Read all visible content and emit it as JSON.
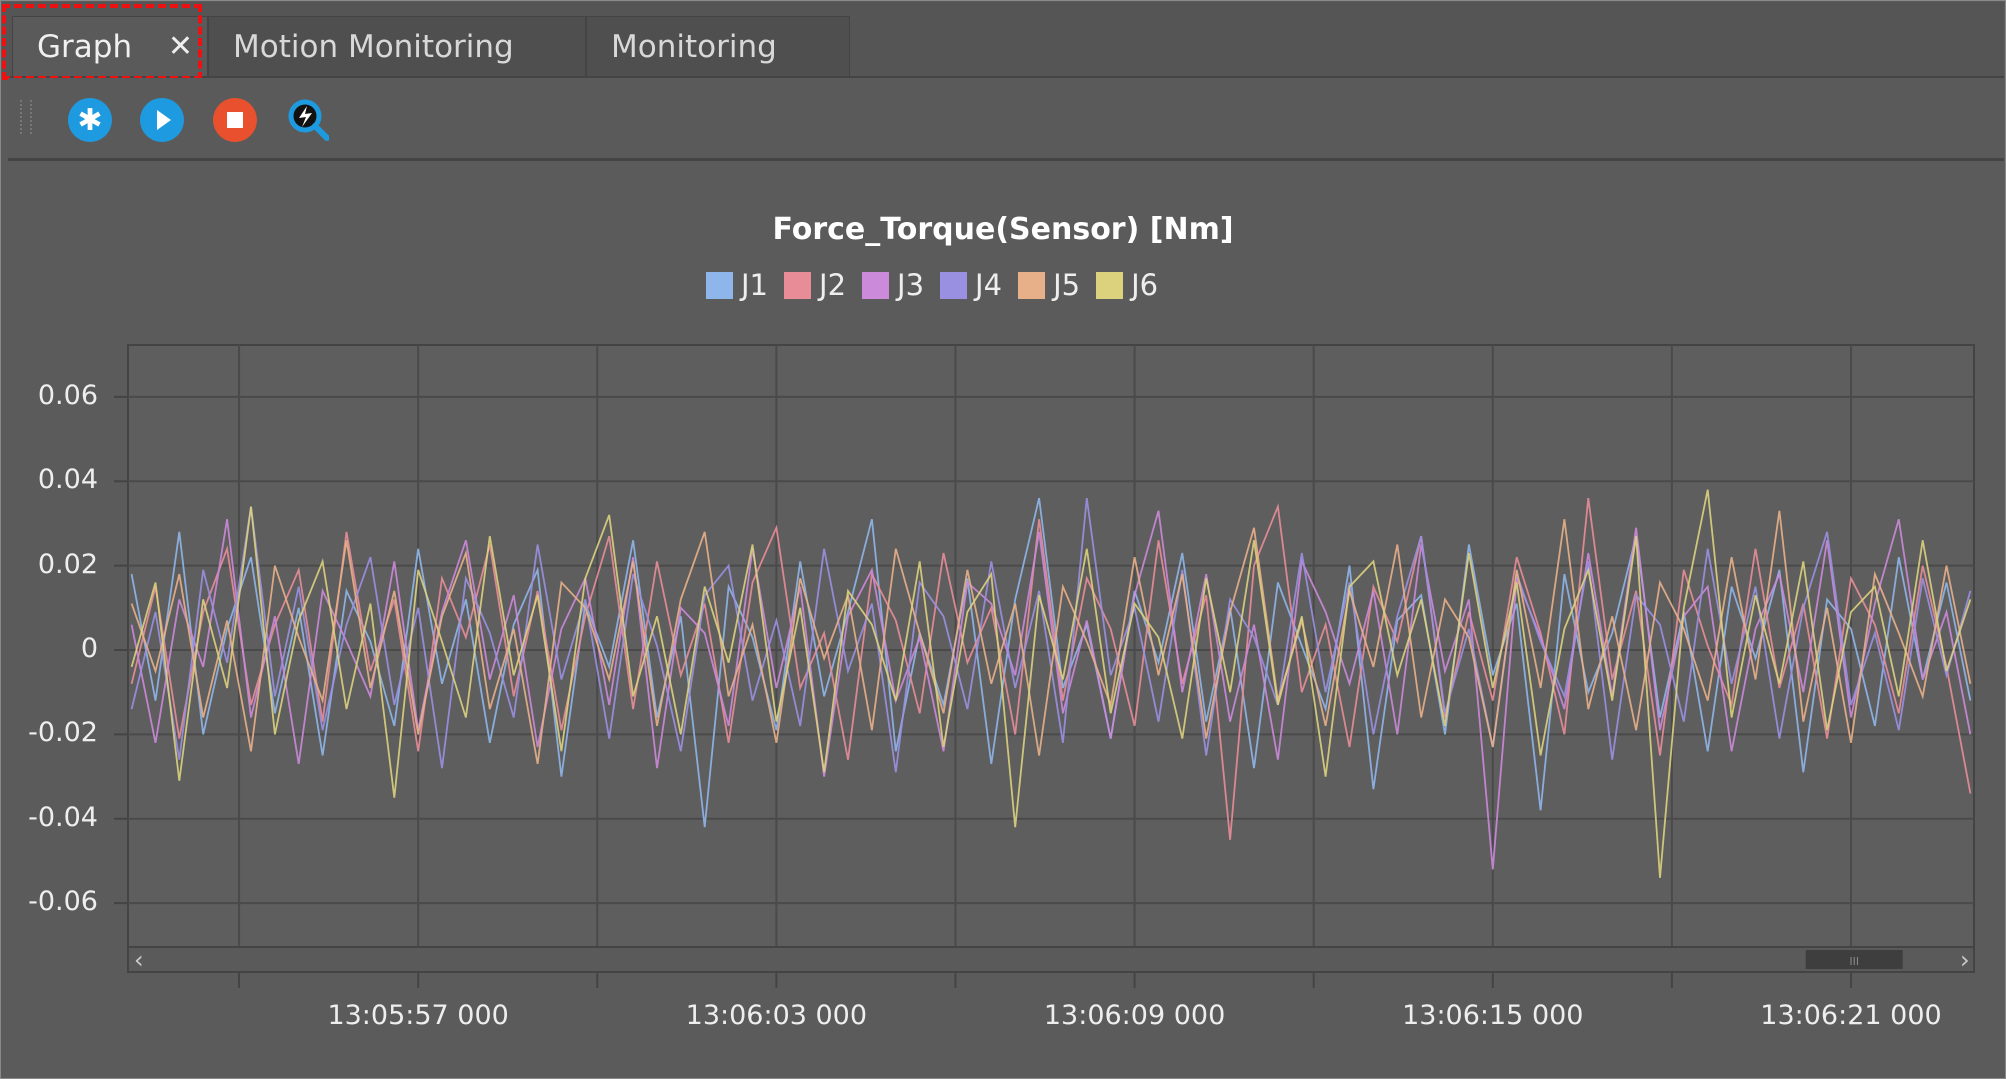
{
  "tabs": [
    {
      "label": "Graph",
      "active": true,
      "closable": true
    },
    {
      "label": "Motion Monitoring"
    },
    {
      "label": "Monitoring"
    }
  ],
  "tab_close_glyph": "✕",
  "toolbar": {
    "buttons": [
      {
        "name": "settings",
        "icon": "gear-icon",
        "color": "#1e9be0"
      },
      {
        "name": "start",
        "icon": "play-icon",
        "color": "#1e9be0"
      },
      {
        "name": "stop",
        "icon": "stop-icon",
        "color": "#e8502e"
      },
      {
        "name": "zoom-reset",
        "icon": "search-refresh-icon",
        "color": "#1e9be0"
      }
    ]
  },
  "chart_data": {
    "type": "line",
    "title": "Force_Torque(Sensor) [Nm]",
    "xlabel": "",
    "ylabel": "",
    "ylim": [
      -0.0704,
      0.0723
    ],
    "yticks": [
      0.06,
      0.04,
      0.02,
      0,
      -0.02,
      -0.04,
      -0.06
    ],
    "ytick_labels": [
      "0.06",
      "0.04",
      "0.02",
      "0",
      "-0.02",
      "-0.04",
      "-0.06"
    ],
    "xlim": [
      "13:05:52.140",
      "13:06:23.060"
    ],
    "xgrid": [
      "13:05:54",
      "13:05:57",
      "13:06:00",
      "13:06:03",
      "13:06:06",
      "13:06:09",
      "13:06:12",
      "13:06:15",
      "13:06:18",
      "13:06:21"
    ],
    "xtick_labels": [
      "13:05:57 000",
      "13:06:03 000",
      "13:06:09 000",
      "13:06:15 000",
      "13:06:21 000"
    ],
    "x_start": "13:05:52.200",
    "interval_ms": 400,
    "grid": true,
    "legend": "top-center",
    "series": [
      {
        "name": "J1",
        "color": "#8fb6ea",
        "values": [
          0.018,
          -0.012,
          0.028,
          -0.02,
          0.005,
          0.022,
          -0.015,
          0.01,
          -0.025,
          0.014,
          0.002,
          -0.018,
          0.024,
          -0.008,
          0.012,
          -0.022,
          0.006,
          0.019,
          -0.03,
          0.011,
          -0.004,
          0.026,
          -0.016,
          0.008,
          -0.042,
          0.015,
          0.003,
          -0.019,
          0.021,
          -0.011,
          0.009,
          0.031,
          -0.024,
          0.004,
          -0.013,
          0.017,
          -0.027,
          0.012,
          0.036,
          -0.009,
          0.006,
          -0.021,
          0.014,
          -0.003,
          0.023,
          -0.017,
          0.01,
          -0.028,
          0.016,
          0.001,
          -0.014,
          0.02,
          -0.033,
          0.007,
          0.013,
          -0.02,
          0.025,
          -0.006,
          0.011,
          -0.038,
          0.018,
          -0.01,
          0.004,
          0.027,
          -0.016,
          0.009,
          -0.024,
          0.015,
          -0.002,
          0.019,
          -0.029,
          0.012,
          0.005,
          -0.018,
          0.022,
          -0.007,
          0.016,
          -0.012
        ]
      },
      {
        "name": "J2",
        "color": "#e88d98",
        "values": [
          -0.008,
          0.015,
          -0.021,
          0.009,
          0.024,
          -0.013,
          0.006,
          0.019,
          -0.017,
          0.028,
          -0.005,
          0.012,
          -0.024,
          0.017,
          0.003,
          0.025,
          -0.011,
          0.014,
          -0.019,
          0.008,
          0.027,
          -0.014,
          0.021,
          -0.006,
          0.011,
          -0.022,
          0.016,
          0.029,
          -0.009,
          0.004,
          -0.026,
          0.018,
          0.007,
          -0.015,
          0.023,
          -0.003,
          0.01,
          -0.02,
          0.031,
          -0.012,
          0.017,
          0.005,
          -0.018,
          0.026,
          -0.008,
          0.013,
          -0.045,
          0.02,
          0.034,
          -0.01,
          0.006,
          -0.023,
          0.015,
          0.002,
          0.027,
          -0.016,
          0.009,
          -0.012,
          0.022,
          0.004,
          -0.02,
          0.036,
          -0.007,
          0.014,
          -0.025,
          0.019,
          0.001,
          -0.013,
          0.024,
          -0.009,
          0.011,
          -0.021,
          0.017,
          0.006,
          -0.015,
          0.02,
          -0.004,
          -0.034
        ]
      },
      {
        "name": "J3",
        "color": "#cc8ada",
        "values": [
          0.006,
          -0.022,
          0.012,
          -0.004,
          0.031,
          -0.016,
          0.008,
          -0.027,
          0.014,
          0.002,
          -0.011,
          0.021,
          -0.019,
          0.009,
          0.026,
          -0.007,
          0.013,
          -0.023,
          0.005,
          0.017,
          -0.013,
          0.022,
          -0.028,
          0.01,
          0.004,
          -0.018,
          0.024,
          -0.009,
          0.015,
          -0.03,
          0.008,
          0.019,
          -0.012,
          0.003,
          -0.024,
          0.016,
          0.011,
          -0.006,
          0.028,
          -0.015,
          0.007,
          -0.021,
          0.013,
          0.033,
          -0.01,
          0.018,
          -0.017,
          0.006,
          -0.026,
          0.021,
          0.009,
          -0.008,
          0.014,
          -0.02,
          0.025,
          -0.005,
          0.012,
          -0.052,
          0.017,
          0.003,
          -0.014,
          0.023,
          -0.011,
          0.029,
          -0.019,
          0.008,
          0.015,
          -0.024,
          0.005,
          0.018,
          -0.01,
          0.026,
          -0.016,
          0.011,
          0.031,
          -0.007,
          0.009,
          -0.02
        ]
      },
      {
        "name": "J4",
        "color": "#9a90e2",
        "values": [
          -0.014,
          0.009,
          -0.026,
          0.019,
          -0.003,
          0.034,
          -0.011,
          0.015,
          -0.019,
          0.006,
          0.022,
          -0.013,
          0.01,
          -0.028,
          0.017,
          0.004,
          -0.016,
          0.025,
          -0.007,
          0.012,
          -0.021,
          0.018,
          0.001,
          -0.024,
          0.013,
          0.02,
          -0.012,
          0.007,
          -0.018,
          0.024,
          -0.005,
          0.011,
          -0.029,
          0.016,
          0.008,
          -0.014,
          0.021,
          -0.009,
          0.014,
          -0.022,
          0.036,
          -0.006,
          0.01,
          -0.017,
          0.019,
          -0.025,
          0.012,
          0.003,
          -0.013,
          0.023,
          -0.01,
          0.016,
          -0.02,
          0.008,
          0.027,
          -0.015,
          0.005,
          -0.023,
          0.018,
          0.002,
          -0.011,
          0.021,
          -0.026,
          0.013,
          0.006,
          -0.017,
          0.024,
          -0.008,
          0.015,
          -0.021,
          0.01,
          0.028,
          -0.013,
          0.004,
          -0.019,
          0.017,
          -0.006,
          0.014
        ]
      },
      {
        "name": "J5",
        "color": "#e8b088",
        "values": [
          0.011,
          -0.005,
          0.018,
          -0.016,
          0.007,
          -0.024,
          0.02,
          0.003,
          -0.012,
          0.026,
          -0.009,
          0.014,
          -0.02,
          0.008,
          0.023,
          -0.014,
          0.005,
          -0.027,
          0.016,
          0.01,
          -0.007,
          0.021,
          -0.018,
          0.012,
          0.028,
          -0.011,
          0.006,
          -0.022,
          0.017,
          -0.002,
          0.013,
          -0.019,
          0.024,
          0.004,
          -0.015,
          0.019,
          -0.008,
          0.011,
          -0.025,
          0.015,
          0.002,
          -0.013,
          0.022,
          -0.006,
          0.018,
          -0.021,
          0.009,
          0.029,
          -0.012,
          0.007,
          -0.018,
          0.014,
          -0.004,
          0.025,
          -0.016,
          0.012,
          0.003,
          -0.023,
          0.019,
          -0.009,
          0.031,
          -0.014,
          0.008,
          -0.019,
          0.016,
          0.005,
          -0.012,
          0.022,
          -0.007,
          0.033,
          -0.017,
          0.01,
          -0.022,
          0.018,
          0.004,
          -0.011,
          0.02,
          -0.008
        ]
      },
      {
        "name": "J6",
        "color": "#dcd27e",
        "values": [
          -0.004,
          0.016,
          -0.031,
          0.012,
          -0.009,
          0.034,
          -0.02,
          0.007,
          0.021,
          -0.014,
          0.011,
          -0.035,
          0.019,
          0.002,
          -0.016,
          0.027,
          -0.006,
          0.013,
          -0.024,
          0.017,
          0.032,
          -0.011,
          0.008,
          -0.02,
          0.015,
          -0.003,
          0.025,
          -0.017,
          0.01,
          -0.029,
          0.014,
          0.006,
          -0.012,
          0.021,
          -0.023,
          0.009,
          0.018,
          -0.042,
          0.013,
          -0.007,
          0.024,
          -0.015,
          0.011,
          0.003,
          -0.021,
          0.017,
          -0.01,
          0.026,
          -0.013,
          0.008,
          -0.03,
          0.015,
          0.021,
          -0.006,
          0.012,
          -0.018,
          0.023,
          -0.009,
          0.016,
          -0.025,
          0.005,
          0.019,
          -0.012,
          0.027,
          -0.054,
          0.01,
          0.038,
          -0.016,
          0.013,
          -0.008,
          0.021,
          -0.019,
          0.009,
          0.015,
          -0.011,
          0.026,
          -0.005,
          0.012
        ]
      }
    ]
  },
  "scrollbar": {
    "left_arrow": "‹",
    "right_arrow": "›",
    "thumb_grip": "III",
    "position": 0.97
  }
}
